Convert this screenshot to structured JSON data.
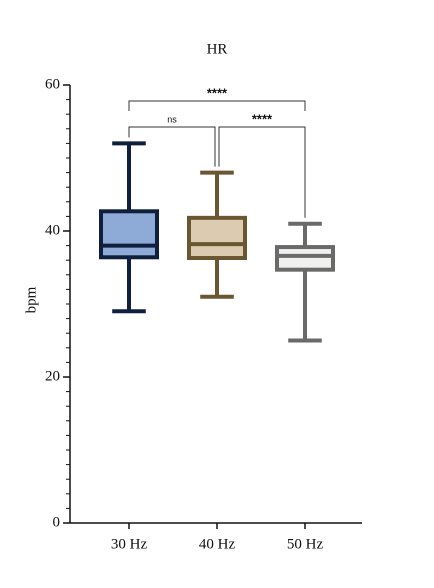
{
  "chart_data": {
    "type": "box",
    "title": "HR",
    "ylabel": "bpm",
    "categories": [
      "30 Hz",
      "40 Hz",
      "50 Hz"
    ],
    "boxes": [
      {
        "min": 29,
        "q1": 36.4,
        "median": 38,
        "q3": 42.7,
        "max": 52,
        "fill": "#8eaad6",
        "color": "#0f1f3d"
      },
      {
        "min": 31,
        "q1": 36.3,
        "median": 38.2,
        "q3": 41.8,
        "max": 48,
        "fill": "#dccbb0",
        "color": "#6b5632"
      },
      {
        "min": 25,
        "q1": 34.7,
        "median": 36.6,
        "q3": 37.8,
        "max": 41,
        "fill": "#f0f0ee",
        "color": "#6a6a6a"
      }
    ],
    "ylim": [
      0,
      60
    ],
    "yticks": [
      0,
      20,
      40,
      60
    ],
    "yminorticks": [
      2,
      4,
      6,
      8,
      10,
      12,
      14,
      16,
      18,
      22,
      24,
      26,
      28,
      30,
      32,
      34,
      36,
      38,
      42,
      44,
      46,
      48,
      50,
      52,
      54,
      56,
      58
    ],
    "annotations": [
      {
        "groups": [
          "30 Hz",
          "40 Hz"
        ],
        "label": "ns"
      },
      {
        "groups": [
          "40 Hz",
          "50 Hz"
        ],
        "label": "****"
      },
      {
        "groups": [
          "30 Hz",
          "50 Hz"
        ],
        "label": "****"
      }
    ]
  }
}
